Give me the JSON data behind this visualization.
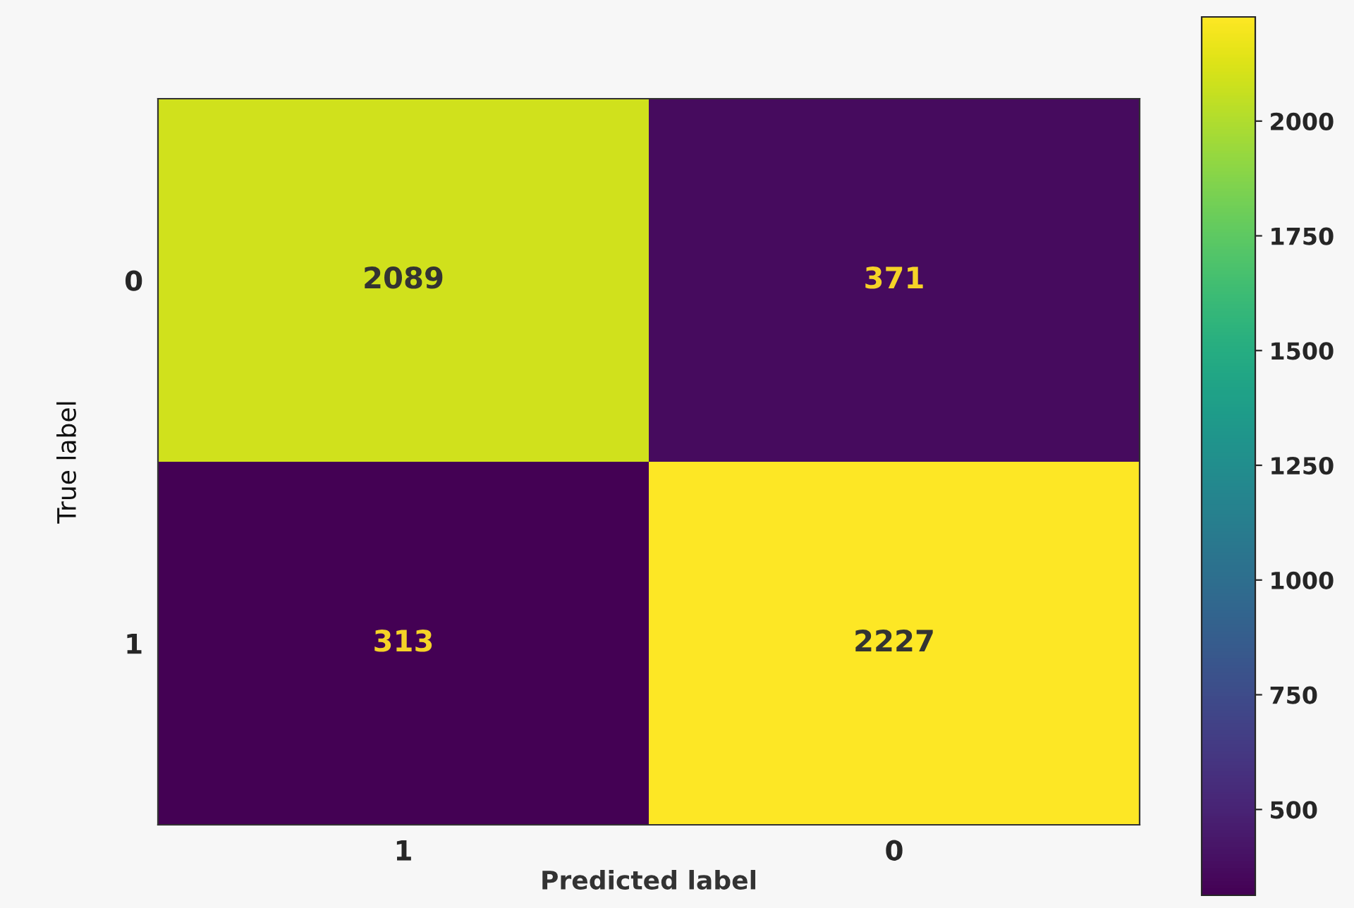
{
  "chart_data": {
    "type": "heatmap",
    "xlabel": "Predicted label",
    "ylabel": "True label",
    "categories": [
      "1",
      "0"
    ],
    "y_categories": [
      "0",
      "1"
    ],
    "cells": [
      [
        2089,
        371
      ],
      [
        313,
        2227
      ]
    ],
    "data_labels": true,
    "clim": [
      313,
      2227
    ],
    "cticks": [
      500,
      750,
      1000,
      1250,
      1500,
      1750,
      2000
    ]
  }
}
